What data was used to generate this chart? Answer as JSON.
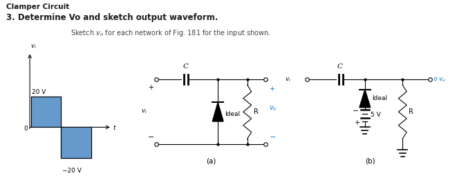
{
  "title_line1": "Clamper Circuit",
  "title_line2": "3. Determine Vo and sketch output waveform.",
  "subtitle": "Sketch $v_o$ for each network of Fig. 181 for the input shown.",
  "label_20V": "20 V",
  "label_m20V": "−20 V",
  "label_0": "0",
  "label_t": "t",
  "label_vi_axis": "$v_i$",
  "label_a": "(a)",
  "label_b": "(b)",
  "label_C_a": "C",
  "label_C_b": "C",
  "label_ideal_a": "Ideal",
  "label_ideal_b": "Ideal",
  "label_R_a": "R",
  "label_R_b": "R",
  "label_vi_a": "$v_i$",
  "label_vo_a": "$v_o$",
  "label_5V": "5 V",
  "label_plus": "+",
  "label_minus": "−",
  "waveform_color": "#6699cc",
  "bg_color": "#ffffff",
  "text_color": "#1a1a1a",
  "blue_color": "#0077cc"
}
